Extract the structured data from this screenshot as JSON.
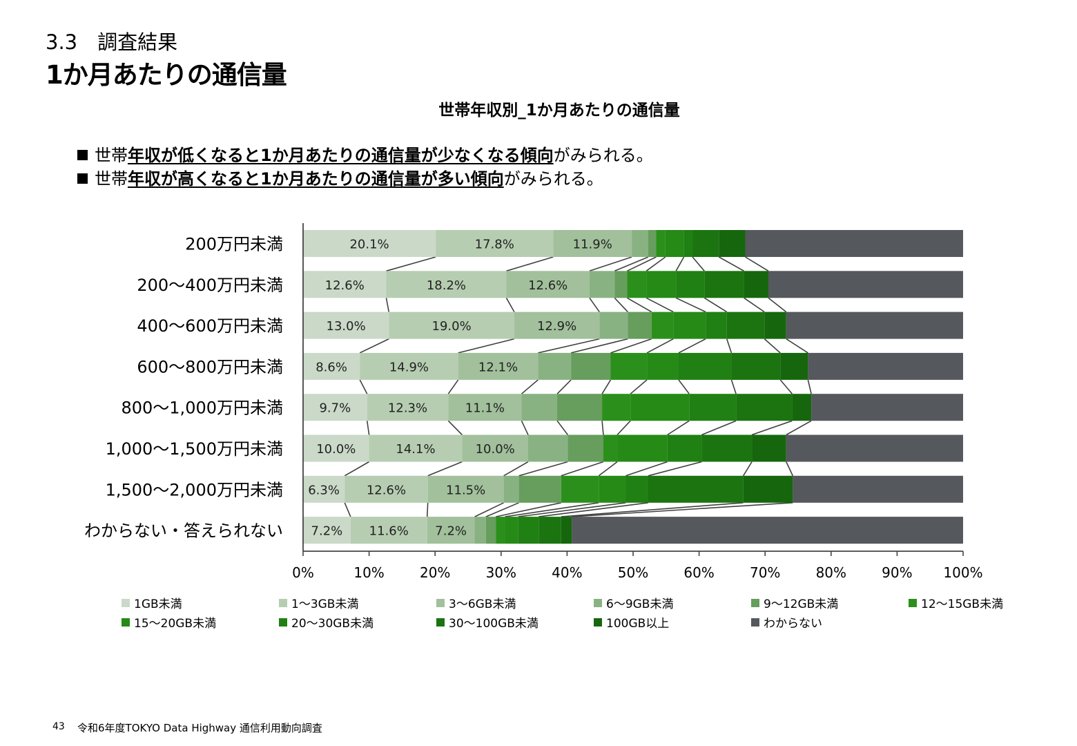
{
  "header": {
    "section": "3.3　調査結果",
    "title": "1か月あたりの通信量"
  },
  "bullets": [
    {
      "pre": "世帯",
      "em": "年収が低くなると1か月あたりの通信量が少なくなる傾向",
      "post": "がみられる。"
    },
    {
      "pre": "世帯",
      "em": "年収が高くなると1か月あたりの通信量が多い傾向",
      "post": "がみられる。"
    }
  ],
  "footer": {
    "page": "43",
    "text": "令和6年度TOKYO Data Highway 通信利用動向調査"
  },
  "chart_data": {
    "type": "bar",
    "orientation": "horizontal",
    "stacked": "percent",
    "title": "世帯年収別_1か月あたりの通信量",
    "xlim": [
      0,
      100
    ],
    "x_ticks": [
      "0%",
      "10%",
      "20%",
      "30%",
      "40%",
      "50%",
      "60%",
      "70%",
      "80%",
      "90%",
      "100%"
    ],
    "categories": [
      "200万円未満",
      "200～400万円未満",
      "400～600万円未満",
      "600～800万円未満",
      "800～1,000万円未満",
      "1,000～1,500万円未満",
      "1,500～2,000万円未満",
      "わからない・答えられない"
    ],
    "series": [
      {
        "name": "1GB未満",
        "color": "#cad9c8",
        "values": [
          20.1,
          12.6,
          13.0,
          8.6,
          9.7,
          10.0,
          6.3,
          7.2
        ]
      },
      {
        "name": "1～3GB未満",
        "color": "#b6cdb1",
        "values": [
          17.8,
          18.2,
          19.0,
          14.9,
          12.3,
          14.1,
          12.6,
          11.6
        ]
      },
      {
        "name": "3～6GB未満",
        "color": "#a1c09b",
        "values": [
          11.9,
          12.6,
          12.9,
          12.1,
          11.1,
          10.0,
          11.5,
          7.2
        ]
      },
      {
        "name": "6～9GB未満",
        "color": "#89b283",
        "values": [
          2.5,
          3.8,
          4.3,
          5.0,
          5.4,
          6.0,
          2.3,
          1.7
        ]
      },
      {
        "name": "9～12GB未満",
        "color": "#679d5d",
        "values": [
          1.2,
          1.9,
          3.6,
          6.0,
          6.8,
          5.4,
          6.4,
          1.5
        ]
      },
      {
        "name": "12～15GB未満",
        "color": "#2b901b",
        "values": [
          1.4,
          2.9,
          3.3,
          5.5,
          4.3,
          2.1,
          5.7,
          1.4
        ]
      },
      {
        "name": "15～20GB未満",
        "color": "#258a16",
        "values": [
          2.8,
          4.5,
          4.9,
          4.8,
          8.9,
          7.6,
          4.1,
          2.0
        ]
      },
      {
        "name": "20～30GB未満",
        "color": "#208013",
        "values": [
          1.3,
          4.3,
          3.2,
          8.0,
          7.1,
          5.2,
          3.4,
          3.1
        ]
      },
      {
        "name": "30～100GB未満",
        "color": "#1b7410",
        "values": [
          4.0,
          6.0,
          5.7,
          7.4,
          8.5,
          7.6,
          14.4,
          3.4
        ]
      },
      {
        "name": "100GB以上",
        "color": "#16660d",
        "values": [
          4.0,
          3.7,
          3.3,
          4.2,
          2.9,
          5.2,
          7.5,
          1.6
        ]
      },
      {
        "name": "わからない",
        "color": "#55585c",
        "values": [
          33.0,
          29.5,
          26.8,
          23.5,
          23.0,
          26.8,
          25.8,
          59.3
        ]
      }
    ],
    "grid": false,
    "legend_position": "bottom"
  }
}
